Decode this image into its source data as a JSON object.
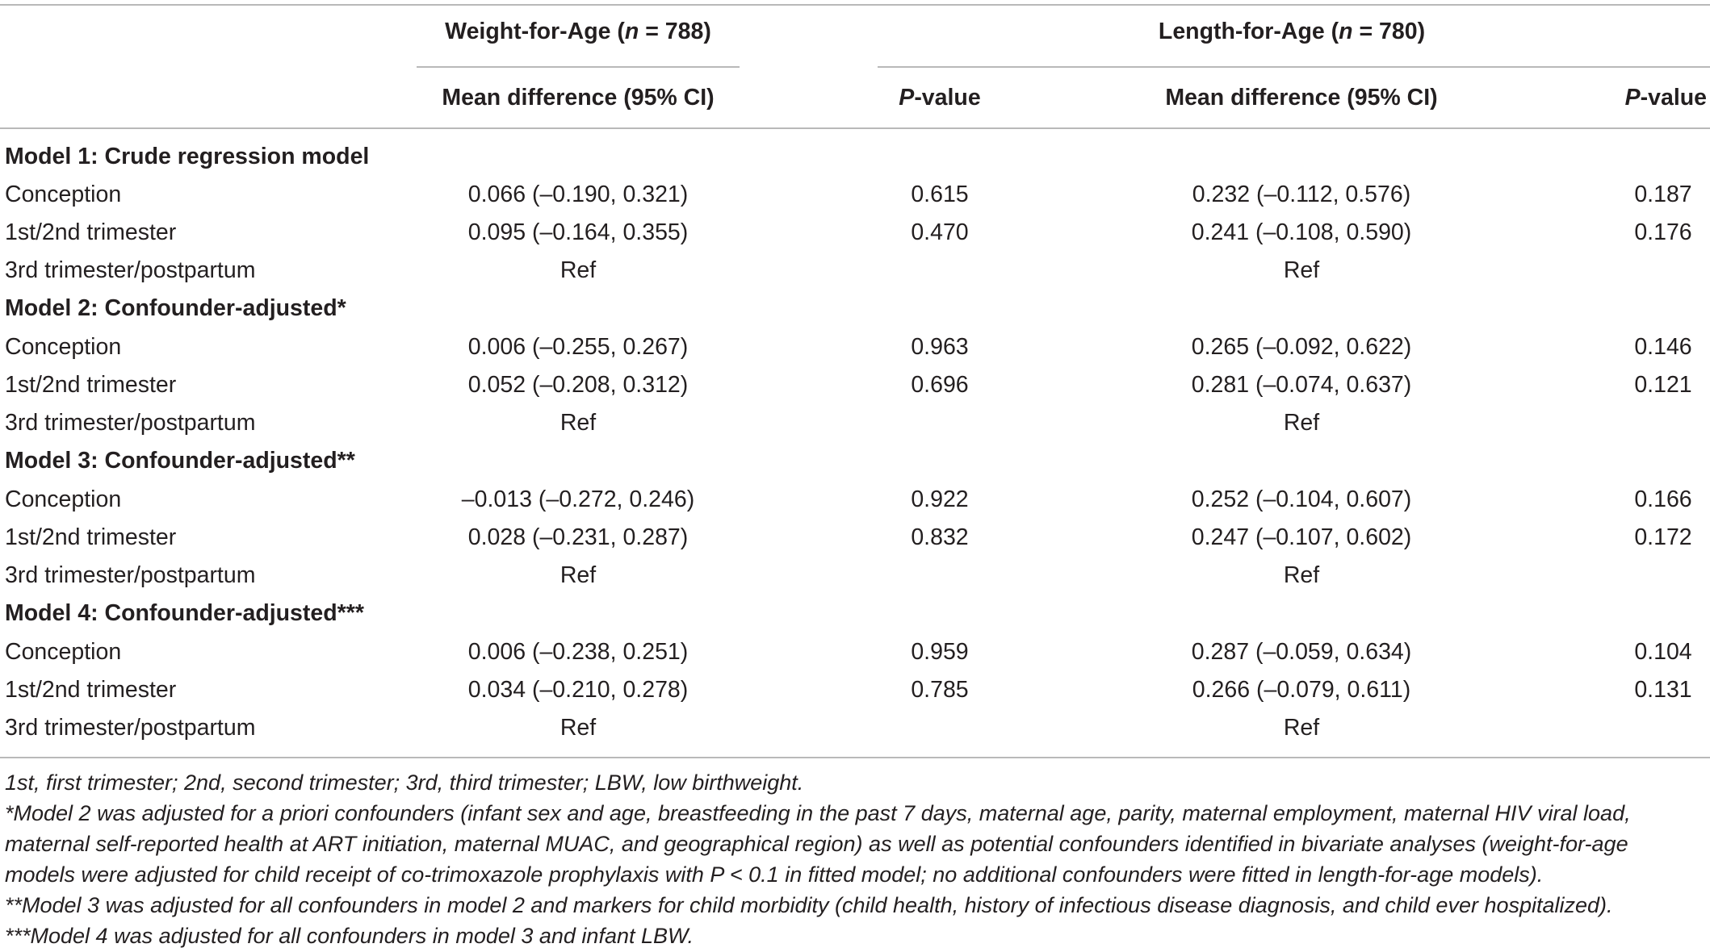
{
  "header": {
    "group1": {
      "pre": "Weight-for-Age (",
      "n": "n",
      "post": " = 788)"
    },
    "group2": {
      "pre": "Length-for-Age (",
      "n": "n",
      "post": " = 780)"
    },
    "col_mean1": "Mean difference (95% CI)",
    "col_p1": {
      "p": "P",
      "rest": "-value"
    },
    "col_mean2": "Mean difference (95% CI)",
    "col_p2": {
      "p": "P",
      "rest": "-value"
    }
  },
  "sections": [
    {
      "title": "Model 1: Crude regression model",
      "rows": [
        {
          "label": "Conception",
          "wfa_md": "0.066 (–0.190, 0.321)",
          "wfa_p": "0.615",
          "lfa_md": "0.232 (–0.112, 0.576)",
          "lfa_p": "0.187"
        },
        {
          "label": "1st/2nd trimester",
          "wfa_md": "0.095 (–0.164, 0.355)",
          "wfa_p": "0.470",
          "lfa_md": "0.241 (–0.108, 0.590)",
          "lfa_p": "0.176"
        },
        {
          "label": "3rd trimester/postpartum",
          "wfa_md": "Ref",
          "wfa_p": "",
          "lfa_md": "Ref",
          "lfa_p": ""
        }
      ]
    },
    {
      "title": "Model 2: Confounder-adjusted*",
      "rows": [
        {
          "label": "Conception",
          "wfa_md": "0.006 (–0.255, 0.267)",
          "wfa_p": "0.963",
          "lfa_md": "0.265 (–0.092, 0.622)",
          "lfa_p": "0.146"
        },
        {
          "label": "1st/2nd trimester",
          "wfa_md": "0.052 (–0.208, 0.312)",
          "wfa_p": "0.696",
          "lfa_md": "0.281 (–0.074, 0.637)",
          "lfa_p": "0.121"
        },
        {
          "label": "3rd trimester/postpartum",
          "wfa_md": "Ref",
          "wfa_p": "",
          "lfa_md": "Ref",
          "lfa_p": ""
        }
      ]
    },
    {
      "title": "Model 3: Confounder-adjusted**",
      "rows": [
        {
          "label": "Conception",
          "wfa_md": "–0.013 (–0.272, 0.246)",
          "wfa_p": "0.922",
          "lfa_md": "0.252 (–0.104, 0.607)",
          "lfa_p": "0.166"
        },
        {
          "label": "1st/2nd trimester",
          "wfa_md": "0.028 (–0.231, 0.287)",
          "wfa_p": "0.832",
          "lfa_md": "0.247 (–0.107, 0.602)",
          "lfa_p": "0.172"
        },
        {
          "label": "3rd trimester/postpartum",
          "wfa_md": "Ref",
          "wfa_p": "",
          "lfa_md": "Ref",
          "lfa_p": ""
        }
      ]
    },
    {
      "title": "Model 4: Confounder-adjusted***",
      "rows": [
        {
          "label": "Conception",
          "wfa_md": "0.006 (–0.238, 0.251)",
          "wfa_p": "0.959",
          "lfa_md": "0.287 (–0.059, 0.634)",
          "lfa_p": "0.104"
        },
        {
          "label": "1st/2nd trimester",
          "wfa_md": "0.034 (–0.210, 0.278)",
          "wfa_p": "0.785",
          "lfa_md": "0.266 (–0.079, 0.611)",
          "lfa_p": "0.131"
        },
        {
          "label": "3rd trimester/postpartum",
          "wfa_md": "Ref",
          "wfa_p": "",
          "lfa_md": "Ref",
          "lfa_p": ""
        }
      ]
    }
  ],
  "footnotes": [
    "1st, first trimester; 2nd, second trimester; 3rd, third trimester; LBW, low birthweight.",
    "*Model 2 was adjusted for a priori confounders (infant sex and age, breastfeeding in the past 7 days, maternal age, parity, maternal employment, maternal HIV viral load,",
    "maternal self-reported health at ART initiation, maternal MUAC, and geographical region) as well as potential confounders identified in bivariate analyses (weight-for-age",
    "models were adjusted for child receipt of co-trimoxazole prophylaxis with P < 0.1 in fitted model; no additional confounders were fitted in length-for-age models).",
    "**Model 3 was adjusted for all confounders in model 2 and markers for child morbidity (child health, history of infectious disease diagnosis, and child ever hospitalized).",
    "***Model 4 was adjusted for all confounders in model 3 and infant LBW."
  ]
}
